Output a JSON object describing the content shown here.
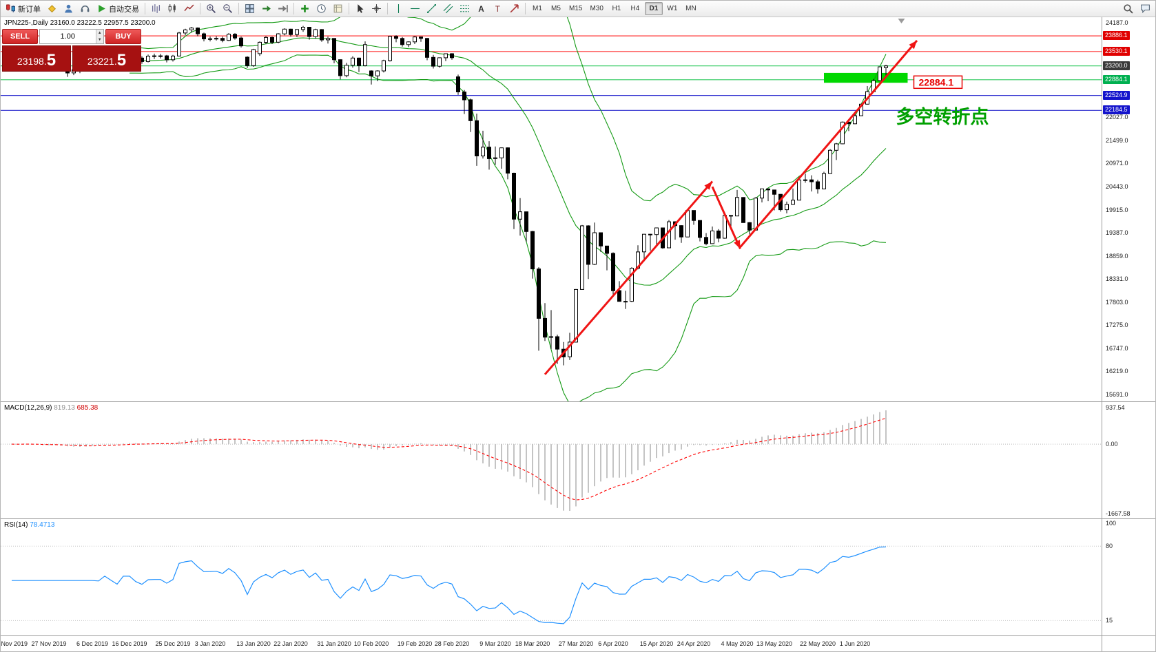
{
  "toolbar": {
    "new_order_label": "新订单",
    "autotrading_label": "自动交易",
    "timeframes": [
      "M1",
      "M5",
      "M15",
      "M30",
      "H1",
      "H4",
      "D1",
      "W1",
      "MN"
    ],
    "active_timeframe": "D1"
  },
  "chart": {
    "title": "JPN225-,Daily 23160.0 23222.5 22957.5 23200.0"
  },
  "trade_panel": {
    "sell_label": "SELL",
    "buy_label": "BUY",
    "volume": "1.00",
    "sell_price": "23198.",
    "sell_price_big": "5",
    "buy_price": "23221.",
    "buy_price_big": "5"
  },
  "indicators": {
    "macd": {
      "label": "MACD(12,26,9)",
      "value_main": "819.13",
      "value_signal": "685.38",
      "axis_top": "937.54",
      "axis_zero": "0.00",
      "axis_bottom": "-1667.58"
    },
    "rsi": {
      "label": "RSI(14)",
      "value": "78.4713",
      "axis": [
        "100",
        "80",
        "15"
      ]
    }
  },
  "chart_data": {
    "type": "candlestick",
    "symbol": "JPN225-",
    "period": "Daily",
    "ohlc_current": {
      "open": 23160.0,
      "high": 23222.5,
      "low": 22957.5,
      "close": 23200.0
    },
    "price_axis": {
      "min": 15691.0,
      "max": 24187.0,
      "labels": [
        {
          "price": 24187.0,
          "text": "24187.0"
        },
        {
          "price": 22027.0,
          "text": "22027.0"
        },
        {
          "price": 21499.0,
          "text": "21499.0"
        },
        {
          "price": 20971.0,
          "text": "20971.0"
        },
        {
          "price": 20443.0,
          "text": "20443.0"
        },
        {
          "price": 19915.0,
          "text": "19915.0"
        },
        {
          "price": 19387.0,
          "text": "19387.0"
        },
        {
          "price": 18859.0,
          "text": "18859.0"
        },
        {
          "price": 18331.0,
          "text": "18331.0"
        },
        {
          "price": 17803.0,
          "text": "17803.0"
        },
        {
          "price": 17275.0,
          "text": "17275.0"
        },
        {
          "price": 16747.0,
          "text": "16747.0"
        },
        {
          "price": 16219.0,
          "text": "16219.0"
        },
        {
          "price": 15691.0,
          "text": "15691.0"
        }
      ],
      "tags": [
        {
          "price": 23886.1,
          "text": "23886.1",
          "bg": "#e00000"
        },
        {
          "price": 23530.1,
          "text": "23530.1",
          "bg": "#e00000"
        },
        {
          "price": 23200.0,
          "text": "23200.0",
          "bg": "#3a3a3a"
        },
        {
          "price": 22884.1,
          "text": "22884.1",
          "bg": "#00b050"
        },
        {
          "price": 22524.9,
          "text": "22524.9",
          "bg": "#1414cc"
        },
        {
          "price": 22184.5,
          "text": "22184.5",
          "bg": "#1414cc"
        }
      ]
    },
    "hlines": [
      {
        "price": 23886.1,
        "color": "#ff3030"
      },
      {
        "price": 23530.1,
        "color": "#ff3030"
      },
      {
        "price": 23200.0,
        "color": "#2fca5f"
      },
      {
        "price": 22884.1,
        "color": "#2fca5f"
      },
      {
        "price": 22524.9,
        "color": "#3030cf"
      },
      {
        "price": 22184.5,
        "color": "#3030cf"
      }
    ],
    "bollinger": {
      "period": 20,
      "deviation": 2,
      "color": "#149a14"
    },
    "candles": [
      [
        23330,
        23410,
        23255,
        23392
      ],
      [
        23392,
        23430,
        23290,
        23332
      ],
      [
        23340,
        23550,
        23310,
        23520
      ],
      [
        23520,
        23545,
        23270,
        23303
      ],
      [
        23300,
        23360,
        23230,
        23320
      ],
      [
        23320,
        23340,
        23070,
        23141
      ],
      [
        23150,
        23320,
        23100,
        23303
      ],
      [
        23303,
        23440,
        23270,
        23416
      ],
      [
        23410,
        23425,
        23110,
        23148
      ],
      [
        23148,
        23180,
        22950,
        23038
      ],
      [
        23040,
        23150,
        22990,
        23113
      ],
      [
        23113,
        23160,
        23035,
        23130
      ],
      [
        23130,
        23310,
        23090,
        23293
      ],
      [
        23293,
        23400,
        23250,
        23373
      ],
      [
        23373,
        23420,
        23300,
        23380
      ],
      [
        23380,
        23560,
        23340,
        23520
      ],
      [
        23520,
        23540,
        23360,
        23409
      ],
      [
        23409,
        23450,
        23240,
        23294
      ],
      [
        23294,
        23560,
        23270,
        23528
      ],
      [
        23528,
        23570,
        23440,
        23530
      ],
      [
        23530,
        23550,
        23300,
        23380
      ],
      [
        23380,
        23420,
        23250,
        23300
      ],
      [
        23300,
        23460,
        23280,
        23424
      ],
      [
        23424,
        23480,
        23360,
        23430
      ],
      [
        23430,
        23475,
        23370,
        23431
      ],
      [
        23431,
        23450,
        23280,
        23340
      ],
      [
        23340,
        23450,
        23300,
        23425
      ],
      [
        23425,
        23980,
        23420,
        23952
      ],
      [
        23952,
        24050,
        23900,
        24023
      ],
      [
        24023,
        24091,
        23960,
        24066
      ],
      [
        24066,
        24080,
        23880,
        23934
      ],
      [
        23934,
        23960,
        23760,
        23817
      ],
      [
        23817,
        23870,
        23760,
        23821
      ],
      [
        23821,
        23880,
        23780,
        23830
      ],
      [
        23830,
        23870,
        23740,
        23783
      ],
      [
        23783,
        23950,
        23770,
        23924
      ],
      [
        23924,
        23950,
        23800,
        23837
      ],
      [
        23837,
        23870,
        23620,
        23656
      ],
      [
        23400,
        23420,
        23150,
        23205
      ],
      [
        23205,
        23590,
        23180,
        23575
      ],
      [
        23480,
        23760,
        23430,
        23740
      ],
      [
        23740,
        23880,
        23700,
        23851
      ],
      [
        23851,
        23870,
        23700,
        23741
      ],
      [
        23741,
        23950,
        23720,
        23933
      ],
      [
        23933,
        24060,
        23900,
        24041
      ],
      [
        24041,
        24050,
        23870,
        23917
      ],
      [
        23917,
        24040,
        23860,
        24031
      ],
      [
        24031,
        24115,
        23980,
        24084
      ],
      [
        24084,
        24090,
        23800,
        23870
      ],
      [
        23870,
        24050,
        23820,
        24032
      ],
      [
        24032,
        24040,
        23750,
        23795
      ],
      [
        23795,
        23870,
        23710,
        23828
      ],
      [
        23828,
        23830,
        23260,
        23342
      ],
      [
        23342,
        23350,
        22890,
        22977
      ],
      [
        22977,
        23270,
        22940,
        23215
      ],
      [
        23215,
        23420,
        23160,
        23380
      ],
      [
        23380,
        23390,
        23060,
        23205
      ],
      [
        23205,
        23760,
        23190,
        23687
      ],
      [
        23085,
        23100,
        22775,
        22972
      ],
      [
        22972,
        23100,
        22850,
        23085
      ],
      [
        23085,
        23340,
        23050,
        23320
      ],
      [
        23320,
        23890,
        23300,
        23874
      ],
      [
        23874,
        23900,
        23740,
        23828
      ],
      [
        23828,
        23860,
        23640,
        23686
      ],
      [
        23686,
        23760,
        23630,
        23749
      ],
      [
        23749,
        23880,
        23700,
        23861
      ],
      [
        23861,
        23870,
        23750,
        23828
      ],
      [
        23828,
        23840,
        23330,
        23395
      ],
      [
        23395,
        23450,
        23140,
        23193
      ],
      [
        23193,
        23390,
        23160,
        23386
      ],
      [
        23386,
        23480,
        23310,
        23479
      ],
      [
        23479,
        23490,
        23340,
        23387
      ],
      [
        22950,
        23000,
        22540,
        22605
      ],
      [
        22605,
        22650,
        22100,
        22426
      ],
      [
        22426,
        22452,
        21690,
        21948
      ],
      [
        21948,
        22110,
        20916,
        21143
      ],
      [
        21143,
        21719,
        21085,
        21344
      ],
      [
        21344,
        21480,
        20830,
        21082
      ],
      [
        21082,
        21360,
        20940,
        21100
      ],
      [
        21100,
        21333,
        20850,
        21329
      ],
      [
        21329,
        21340,
        20610,
        20750
      ],
      [
        20750,
        20760,
        19472,
        19699
      ],
      [
        19699,
        20180,
        19320,
        19867
      ],
      [
        19867,
        19870,
        19180,
        19416
      ],
      [
        19416,
        19430,
        18340,
        18560
      ],
      [
        18560,
        18600,
        16691,
        17431
      ],
      [
        17431,
        17780,
        16914,
        17002
      ],
      [
        17002,
        17620,
        16730,
        17012
      ],
      [
        17012,
        17060,
        16390,
        16727
      ],
      [
        16727,
        16890,
        16358,
        16553
      ],
      [
        16553,
        17100,
        16480,
        16888
      ],
      [
        16888,
        18100,
        16880,
        18092
      ],
      [
        18092,
        19564,
        18090,
        19546
      ],
      [
        19546,
        19560,
        18330,
        18665
      ],
      [
        18665,
        19620,
        18650,
        19389
      ],
      [
        19389,
        19390,
        18950,
        19085
      ],
      [
        19085,
        19090,
        18530,
        18917
      ],
      [
        18917,
        18940,
        17950,
        18065
      ],
      [
        18065,
        18280,
        17820,
        17818
      ],
      [
        17818,
        18060,
        17646,
        17820
      ],
      [
        17820,
        18600,
        17800,
        18576
      ],
      [
        18576,
        19100,
        18550,
        18950
      ],
      [
        18950,
        19360,
        18730,
        19353
      ],
      [
        19353,
        19360,
        18980,
        19346
      ],
      [
        19346,
        19500,
        19120,
        19499
      ],
      [
        19499,
        19500,
        19020,
        19043
      ],
      [
        19043,
        19680,
        19040,
        19639
      ],
      [
        19639,
        19650,
        19230,
        19551
      ],
      [
        19551,
        19560,
        19155,
        19291
      ],
      [
        19291,
        19922,
        19290,
        19897
      ],
      [
        19897,
        19900,
        19570,
        19669
      ],
      [
        19669,
        19670,
        19190,
        19281
      ],
      [
        19281,
        19380,
        19100,
        19138
      ],
      [
        19138,
        19530,
        19130,
        19429
      ],
      [
        19429,
        19470,
        19170,
        19262
      ],
      [
        19262,
        19790,
        19250,
        19783
      ],
      [
        19783,
        19790,
        19470,
        19771
      ],
      [
        19771,
        20365,
        19770,
        20194
      ],
      [
        20194,
        20200,
        19619,
        19619
      ],
      [
        19619,
        19630,
        19350,
        19448
      ],
      [
        19448,
        20200,
        19440,
        20179
      ],
      [
        20179,
        20395,
        20080,
        20390
      ],
      [
        20390,
        20400,
        20110,
        20366
      ],
      [
        20366,
        20370,
        19900,
        20267
      ],
      [
        20267,
        20270,
        19870,
        19914
      ],
      [
        19914,
        20100,
        19830,
        20037
      ],
      [
        20037,
        20400,
        20030,
        20133
      ],
      [
        20133,
        20640,
        20130,
        20595
      ],
      [
        20595,
        20740,
        20530,
        20596
      ],
      [
        20596,
        20700,
        20330,
        20552
      ],
      [
        20552,
        20600,
        20280,
        20388
      ],
      [
        20388,
        20780,
        20380,
        20741
      ],
      [
        20741,
        21300,
        20740,
        21271
      ],
      [
        21271,
        21440,
        21050,
        21419
      ],
      [
        21419,
        21930,
        21410,
        21916
      ],
      [
        21916,
        21920,
        21710,
        21878
      ],
      [
        21878,
        22120,
        21870,
        22062
      ],
      [
        22062,
        22330,
        22060,
        22326
      ],
      [
        22326,
        22740,
        22320,
        22614
      ],
      [
        22614,
        22900,
        22610,
        22864
      ],
      [
        22864,
        23180,
        22860,
        23178
      ],
      [
        23160,
        23222.5,
        22957.5,
        23200
      ]
    ],
    "date_ticks": [
      {
        "i": 0,
        "label": "8 Nov 2019"
      },
      {
        "i": 6,
        "label": "27 Nov 2019"
      },
      {
        "i": 13,
        "label": "6 Dec 2019"
      },
      {
        "i": 19,
        "label": "16 Dec 2019"
      },
      {
        "i": 26,
        "label": "25 Dec 2019"
      },
      {
        "i": 32,
        "label": "3 Jan 2020"
      },
      {
        "i": 39,
        "label": "13 Jan 2020"
      },
      {
        "i": 45,
        "label": "22 Jan 2020"
      },
      {
        "i": 52,
        "label": "31 Jan 2020"
      },
      {
        "i": 58,
        "label": "10 Feb 2020"
      },
      {
        "i": 65,
        "label": "19 Feb 2020"
      },
      {
        "i": 71,
        "label": "28 Feb 2020"
      },
      {
        "i": 78,
        "label": "9 Mar 2020"
      },
      {
        "i": 84,
        "label": "18 Mar 2020"
      },
      {
        "i": 91,
        "label": "27 Mar 2020"
      },
      {
        "i": 97,
        "label": "6 Apr 2020"
      },
      {
        "i": 104,
        "label": "15 Apr 2020"
      },
      {
        "i": 110,
        "label": "24 Apr 2020"
      },
      {
        "i": 117,
        "label": "4 May 2020"
      },
      {
        "i": 123,
        "label": "13 May 2020"
      },
      {
        "i": 130,
        "label": "22 May 2020"
      },
      {
        "i": 136,
        "label": "1 Jun 2020"
      }
    ],
    "annotations": {
      "rect": {
        "i1": 131,
        "i2": 144.5,
        "price_top": 23040,
        "price_bottom": 22815,
        "color": "#00d800"
      },
      "arrows": [
        {
          "i1": 86,
          "p1": 16150,
          "i2": 113,
          "p2": 20560
        },
        {
          "i1": 113,
          "p1": 20440,
          "i2": 117.5,
          "p2": 19020
        },
        {
          "i1": 117.5,
          "p1": 19060,
          "i2": 146,
          "p2": 23780
        }
      ],
      "arrow_color": "#f01414",
      "price_label": {
        "i": 145.5,
        "price": 22830,
        "text": "22884.1",
        "color": "#e80000"
      },
      "text_label": {
        "i": 142.6,
        "price": 21890,
        "text": "多空转折点",
        "color": "#00a000",
        "size": 27
      }
    },
    "macd": {
      "fast": 12,
      "slow": 26,
      "signal": 9,
      "bar_color": "#b6b6b6",
      "signal_color": "#ff0000"
    },
    "rsi": {
      "period": 14,
      "color": "#1e90ff",
      "levels": [
        80,
        15
      ]
    },
    "shift_marker_i": 143.5
  }
}
